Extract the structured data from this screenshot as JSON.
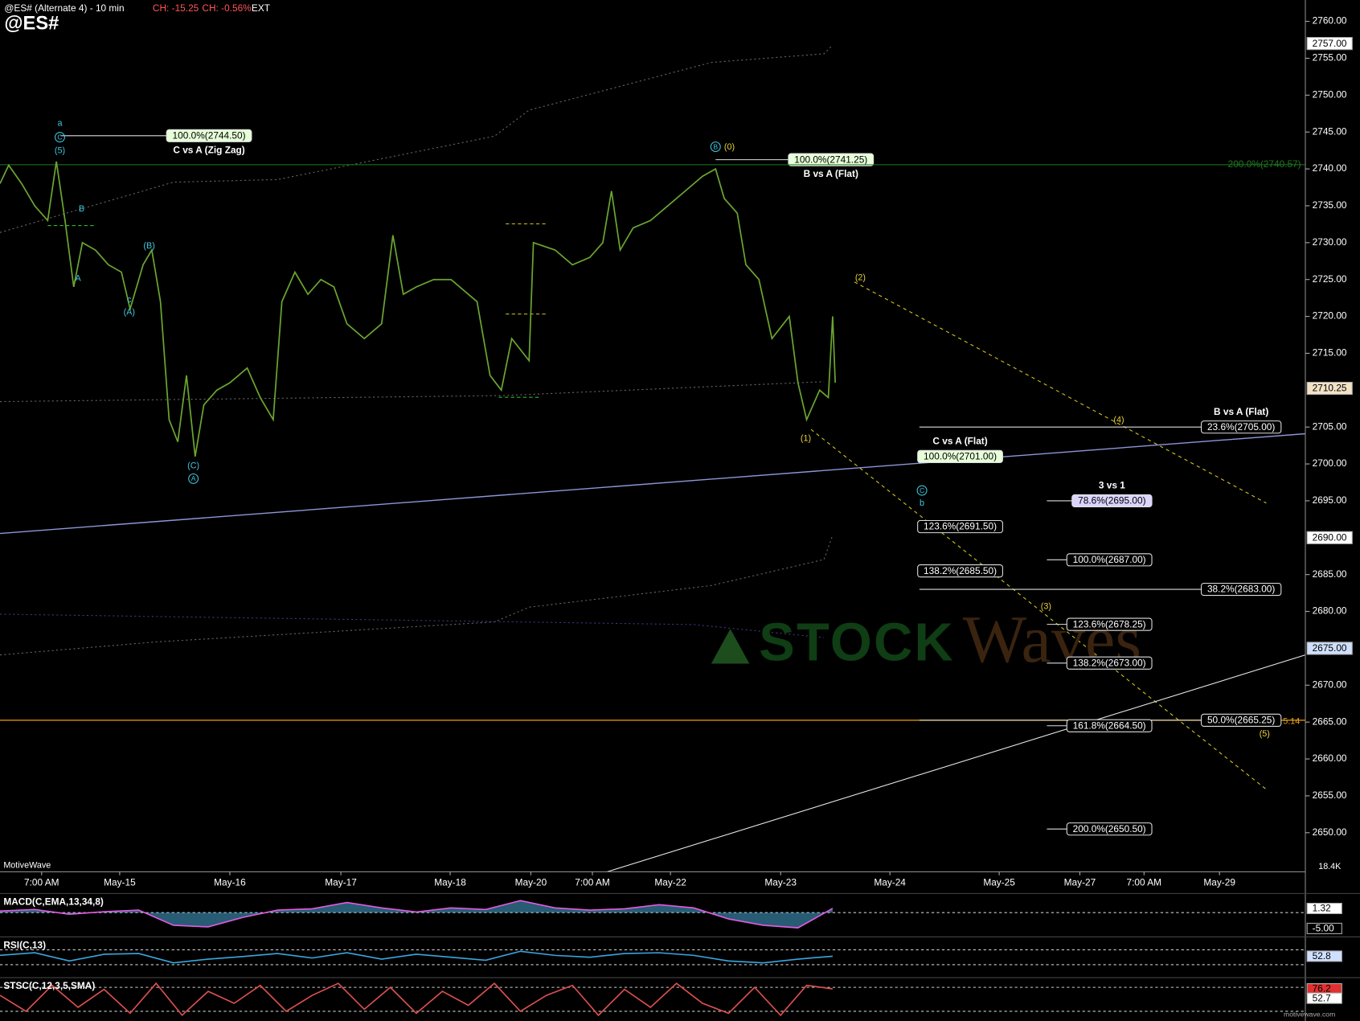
{
  "header": {
    "symbol_line": "@ES# (Alternate 4) - 10 min",
    "change": "CH: -15.25",
    "change_pct": "CH: -0.56%",
    "session": "EXT",
    "symbol": "@ES#"
  },
  "chart_data": {
    "type": "line",
    "xlim": [
      0,
      150.5
    ],
    "xticks": [
      {
        "value": 4.8,
        "label": "7:00 AM"
      },
      {
        "value": 13.8,
        "label": "May-15"
      },
      {
        "value": 26.5,
        "label": "May-16"
      },
      {
        "value": 39.3,
        "label": "May-17"
      },
      {
        "value": 51.9,
        "label": "May-18"
      },
      {
        "value": 61.2,
        "label": "May-20"
      },
      {
        "value": 68.3,
        "label": "7:00 AM"
      },
      {
        "value": 77.3,
        "label": "May-22"
      },
      {
        "value": 90,
        "label": "May-23"
      },
      {
        "value": 102.6,
        "label": "May-24"
      },
      {
        "value": 115.2,
        "label": "May-25"
      },
      {
        "value": 124.5,
        "label": "May-27"
      },
      {
        "value": 131.9,
        "label": "7:00 AM"
      },
      {
        "value": 140.6,
        "label": "May-29"
      }
    ],
    "ylim": [
      2644.7,
      2762.9
    ],
    "yticks": [
      {
        "value": 2650,
        "label": "2650.00"
      },
      {
        "value": 2655,
        "label": "2655.00"
      },
      {
        "value": 2660,
        "label": "2660.00"
      },
      {
        "value": 2665,
        "label": "2665.00"
      },
      {
        "value": 2670,
        "label": "2670.00"
      },
      {
        "value": 2680,
        "label": "2680.00"
      },
      {
        "value": 2685,
        "label": "2685.00"
      },
      {
        "value": 2695,
        "label": "2695.00"
      },
      {
        "value": 2700,
        "label": "2700.00"
      },
      {
        "value": 2705,
        "label": "2705.00"
      },
      {
        "value": 2715,
        "label": "2715.00"
      },
      {
        "value": 2720,
        "label": "2720.00"
      },
      {
        "value": 2725,
        "label": "2725.00"
      },
      {
        "value": 2730,
        "label": "2730.00"
      },
      {
        "value": 2735,
        "label": "2735.00"
      },
      {
        "value": 2740,
        "label": "2740.00"
      },
      {
        "value": 2745,
        "label": "2745.00"
      },
      {
        "value": 2750,
        "label": "2750.00"
      },
      {
        "value": 2755,
        "label": "2755.00"
      },
      {
        "value": 2760,
        "label": "2760.00"
      }
    ],
    "markers": [
      {
        "value": 2757,
        "label": "2757.00",
        "bg": "#ffffff"
      },
      {
        "value": 2710.25,
        "label": "2710.25",
        "bg": "#f3e2c6"
      },
      {
        "value": 2690,
        "label": "2690.00",
        "bg": "#ffffff"
      },
      {
        "value": 2675,
        "label": "2675.00",
        "bg": "#cfe0ff"
      }
    ],
    "series": [
      {
        "name": "@ES#",
        "color": "#6aa530",
        "x": [
          0,
          1,
          2.5,
          4,
          5.5,
          6.5,
          7.5,
          8.5,
          9.5,
          11,
          12.5,
          14,
          15,
          16.5,
          17.5,
          18.5,
          19.5,
          20.5,
          21.5,
          22.5,
          23.5,
          25,
          26.5,
          28.5,
          30,
          31.5,
          32.5,
          34,
          35.5,
          37,
          38.5,
          40,
          42,
          44,
          45.3,
          46.5,
          48,
          50,
          52,
          55,
          56.5,
          57.8,
          59,
          61,
          61.5,
          64,
          66,
          68,
          69.5,
          70.5,
          71.5,
          73,
          75,
          77,
          79,
          81,
          82.5,
          83.5,
          85,
          86,
          87.5,
          89,
          91,
          92,
          93,
          94.5,
          95.5,
          96,
          96.3
        ],
        "values": [
          2738,
          2740.5,
          2738,
          2735,
          2733,
          2741,
          2733,
          2724,
          2730,
          2729,
          2727,
          2726,
          2721,
          2727,
          2729,
          2722,
          2706,
          2703,
          2712,
          2701,
          2708,
          2710,
          2711,
          2713,
          2709,
          2706,
          2722,
          2726,
          2723,
          2725,
          2724,
          2719,
          2717,
          2719,
          2731,
          2723,
          2724,
          2725,
          2725,
          2722,
          2712,
          2710,
          2717,
          2714,
          2730,
          2729,
          2727,
          2728,
          2730,
          2737,
          2729,
          2732,
          2733,
          2735,
          2737,
          2739,
          2740,
          2736,
          2734,
          2727,
          2725,
          2717,
          2720,
          2711,
          2706,
          2710,
          2709,
          2720,
          2711
        ]
      }
    ],
    "fibs": [
      {
        "label": "100.0%(2744.50)",
        "value": 2744.5,
        "x1": 7,
        "x2": 29,
        "box": "end",
        "bg": "#e6ffd9",
        "fg": "#000000",
        "caption": "C vs A (Zig Zag)",
        "caption_pos": "below"
      },
      {
        "label": "100.0%(2741.25)",
        "value": 2741.25,
        "x1": 82.5,
        "x2": 100.7,
        "box": "end",
        "bg": "#e6ffd9",
        "fg": "#000000",
        "caption": "B vs A (Flat)",
        "caption_pos": "below"
      },
      {
        "label": "200.0%(2740.57)",
        "value": 2740.57,
        "x1": 0,
        "x2": 150.5,
        "box": "none",
        "color": "#1f7a1f"
      },
      {
        "label": "23.6%(2705.00)",
        "value": 2705,
        "x1": 106,
        "x2": 147.7,
        "box": "end",
        "bg": "#000000",
        "fg": "#ffffff",
        "caption": "B vs A (Flat)",
        "caption_pos": "above"
      },
      {
        "label": "100.0%(2701.00)",
        "value": 2701,
        "x1": 105.8,
        "x2": 105.8,
        "box": "start",
        "bg": "#e6ffd9",
        "fg": "#000000",
        "caption": "C vs A (Flat)",
        "caption_pos": "above"
      },
      {
        "label": "78.6%(2695.00)",
        "value": 2695,
        "x1": 120.7,
        "x2": 132.8,
        "box": "end",
        "bg": "#dcd6ff",
        "fg": "#000000",
        "caption": "3 vs 1",
        "caption_pos": "above"
      },
      {
        "label": "123.6%(2691.50)",
        "value": 2691.5,
        "x1": 105.8,
        "x2": 105.8,
        "box": "start",
        "bg": "#000000",
        "fg": "#ffffff"
      },
      {
        "label": "100.0%(2687.00)",
        "value": 2687,
        "x1": 120.7,
        "x2": 132.8,
        "box": "end",
        "bg": "#000000",
        "fg": "#ffffff"
      },
      {
        "label": "138.2%(2685.50)",
        "value": 2685.5,
        "x1": 105.8,
        "x2": 105.8,
        "box": "start",
        "bg": "#000000",
        "fg": "#ffffff"
      },
      {
        "label": "38.2%(2683.00)",
        "value": 2683,
        "x1": 106,
        "x2": 147.7,
        "box": "end",
        "bg": "#000000",
        "fg": "#ffffff"
      },
      {
        "label": "123.6%(2678.25)",
        "value": 2678.25,
        "x1": 120.7,
        "x2": 132.8,
        "box": "end",
        "bg": "#000000",
        "fg": "#ffffff"
      },
      {
        "label": "138.2%(2673.00)",
        "value": 2673,
        "x1": 120.7,
        "x2": 132.8,
        "box": "end",
        "bg": "#000000",
        "fg": "#ffffff"
      },
      {
        "label": "50.0%(2665.25)",
        "value": 2665.25,
        "x1": 106,
        "x2": 147.7,
        "box": "end",
        "bg": "#000000",
        "fg": "#ffffff",
        "full_line": "#c8860a"
      },
      {
        "label": "161.8%(2664.50)",
        "value": 2664.5,
        "x1": 120.7,
        "x2": 132.8,
        "box": "end",
        "bg": "#000000",
        "fg": "#ffffff"
      },
      {
        "label": "200.0%(2650.50)",
        "value": 2650.5,
        "x1": 120.7,
        "x2": 132.8,
        "box": "end",
        "bg": "#000000",
        "fg": "#ffffff"
      }
    ],
    "annotations": [
      {
        "text": "a",
        "x": 6.9,
        "y": 2746.2,
        "color": "#3ec9e0"
      },
      {
        "text": "C",
        "x": 6.9,
        "y": 2744.3,
        "color": "#3ec9e0",
        "circled": true
      },
      {
        "text": "(5)",
        "x": 6.9,
        "y": 2742.5,
        "color": "#3ec9e0"
      },
      {
        "text": "B",
        "x": 9.4,
        "y": 2734.6,
        "color": "#3ec9e0"
      },
      {
        "text": "A",
        "x": 9,
        "y": 2725.2,
        "color": "#3ec9e0"
      },
      {
        "text": "(B)",
        "x": 17.2,
        "y": 2729.6,
        "color": "#3ec9e0"
      },
      {
        "text": "c",
        "x": 14.9,
        "y": 2722.3,
        "color": "#3ec9e0"
      },
      {
        "text": "(A)",
        "x": 14.9,
        "y": 2720.6,
        "color": "#3ec9e0"
      },
      {
        "text": "(C)",
        "x": 22.3,
        "y": 2699.8,
        "color": "#3ec9e0"
      },
      {
        "text": "A",
        "x": 22.3,
        "y": 2698,
        "color": "#3ec9e0",
        "circled": true
      },
      {
        "text": "B",
        "x": 82.5,
        "y": 2743,
        "color": "#3ec9e0",
        "circled": true
      },
      {
        "text": "(0)",
        "x": 84.1,
        "y": 2743,
        "color": "#e8d23a"
      },
      {
        "text": "C",
        "x": 106.3,
        "y": 2696.4,
        "color": "#3ec9e0",
        "circled": true
      },
      {
        "text": "b",
        "x": 106.3,
        "y": 2694.7,
        "color": "#3ec9e0"
      },
      {
        "text": "(2)",
        "x": 99.2,
        "y": 2725.3,
        "color": "#e8d23a"
      },
      {
        "text": "(1)",
        "x": 92.9,
        "y": 2703.5,
        "color": "#e8d23a"
      },
      {
        "text": "(4)",
        "x": 129,
        "y": 2706,
        "color": "#e8d23a"
      },
      {
        "text": "(3)",
        "x": 120.6,
        "y": 2680.7,
        "color": "#e8d23a"
      },
      {
        "text": "(5)",
        "x": 145.8,
        "y": 2663.4,
        "color": "#e8d23a"
      },
      {
        "text": "5.14",
        "x": 148.9,
        "y": 2665.1,
        "color": "#e8a21a"
      }
    ],
    "volume_label": "18.4K",
    "source": "MotiveWave",
    "watermark": [
      "STOCK",
      "Waves"
    ],
    "footer": "motivewave.com",
    "panels": [
      {
        "label": "MACD(C,EMA,13,34,8)",
        "ylim": [
          -7.1,
          5.5
        ],
        "guides": [
          0
        ],
        "color": "#e45be0",
        "fill": "#4fb8e8",
        "x": [
          0,
          4,
          8,
          12,
          16,
          20,
          24,
          28,
          32,
          36,
          40,
          44,
          48,
          52,
          56,
          60,
          64,
          68,
          72,
          76,
          80,
          84,
          88,
          92,
          96
        ],
        "values": [
          0.5,
          1,
          -0.5,
          0.3,
          0.8,
          -4,
          -4.5,
          -1.5,
          0.8,
          1.2,
          3.2,
          1.5,
          0.2,
          1.5,
          1,
          3.8,
          1.5,
          0.8,
          1.2,
          2.5,
          1.5,
          -2,
          -4,
          -4.8,
          1.32
        ],
        "markers": [
          {
            "value": 1.32,
            "label": "1.32",
            "bg": "#ffffff"
          },
          {
            "value": -5,
            "label": "-5.00",
            "bg": "#000000"
          }
        ]
      },
      {
        "label": "RSI(C,13)",
        "ylim": [
          0,
          100
        ],
        "guides": [
          70,
          30
        ],
        "color": "#3aa6e0",
        "x": [
          0,
          4,
          8,
          12,
          16,
          20,
          24,
          28,
          32,
          36,
          40,
          44,
          48,
          52,
          56,
          60,
          64,
          68,
          72,
          76,
          80,
          84,
          88,
          92,
          96
        ],
        "values": [
          55,
          62,
          40,
          58,
          60,
          35,
          45,
          52,
          60,
          48,
          62,
          45,
          58,
          50,
          42,
          66,
          55,
          50,
          60,
          62,
          55,
          40,
          35,
          45,
          52.8
        ],
        "markers": [
          {
            "value": 52.8,
            "label": "52.8",
            "bg": "#cfe0ff"
          }
        ]
      },
      {
        "label": "STSC(C,12,3,5,SMA)",
        "ylim": [
          0,
          100
        ],
        "guides": [
          80,
          20
        ],
        "color": "#e05050",
        "x": [
          0,
          3,
          6,
          9,
          12,
          15,
          18,
          21,
          24,
          27,
          30,
          33,
          36,
          39,
          42,
          45,
          48,
          51,
          54,
          57,
          60,
          63,
          66,
          69,
          72,
          75,
          78,
          81,
          84,
          87,
          90,
          93,
          96
        ],
        "values": [
          60,
          20,
          85,
          30,
          75,
          15,
          90,
          10,
          70,
          40,
          85,
          20,
          60,
          90,
          25,
          80,
          15,
          70,
          35,
          90,
          20,
          60,
          85,
          10,
          75,
          30,
          90,
          40,
          15,
          80,
          10,
          85,
          76.2
        ],
        "markers": [
          {
            "value": 76.2,
            "label": "76.2",
            "bg": "#e03030"
          },
          {
            "value": 52.7,
            "label": "52.7",
            "bg": "#ffffff"
          }
        ]
      }
    ]
  }
}
